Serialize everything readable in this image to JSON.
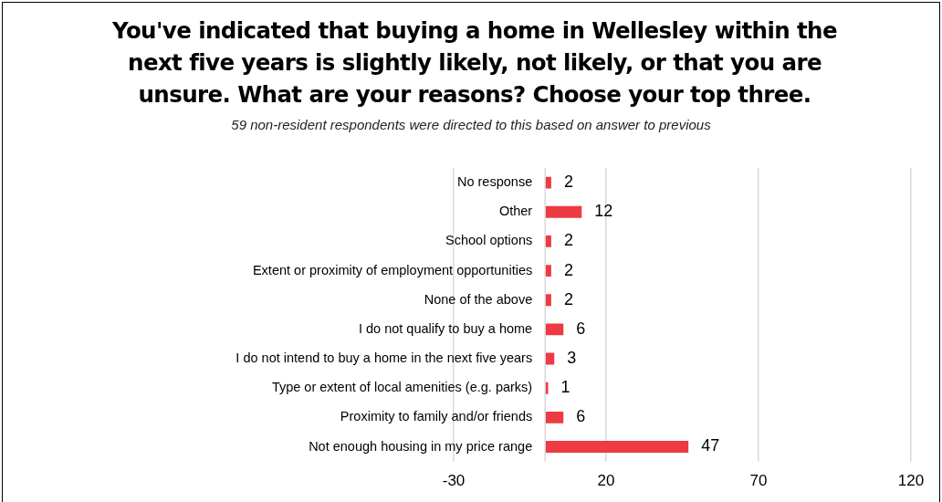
{
  "chart_data": {
    "type": "bar",
    "orientation": "horizontal",
    "title": "You've indicated that buying a home in Wellesley within the next five years is slightly likely, not likely, or that you are unsure. What are your reasons? Choose your top three.",
    "subtitle": "59 non-resident respondents were directed to this based on answer to previous",
    "categories": [
      "No response",
      "Other",
      "School options",
      "Extent or proximity of employment opportunities",
      "None of the above",
      "I do not qualify to buy a home",
      "I do not intend to buy a home in the next five years",
      "Type or extent of local amenities (e.g. parks)",
      "Proximity to family and/or friends",
      "Not enough housing in my price range"
    ],
    "values": [
      2,
      12,
      2,
      2,
      2,
      6,
      3,
      1,
      6,
      47
    ],
    "color": "#ee3a43",
    "xlim": [
      -30,
      120
    ],
    "xticks": [
      -30,
      20,
      70,
      120
    ],
    "grid": "x",
    "data_labels": true,
    "legend": false
  }
}
